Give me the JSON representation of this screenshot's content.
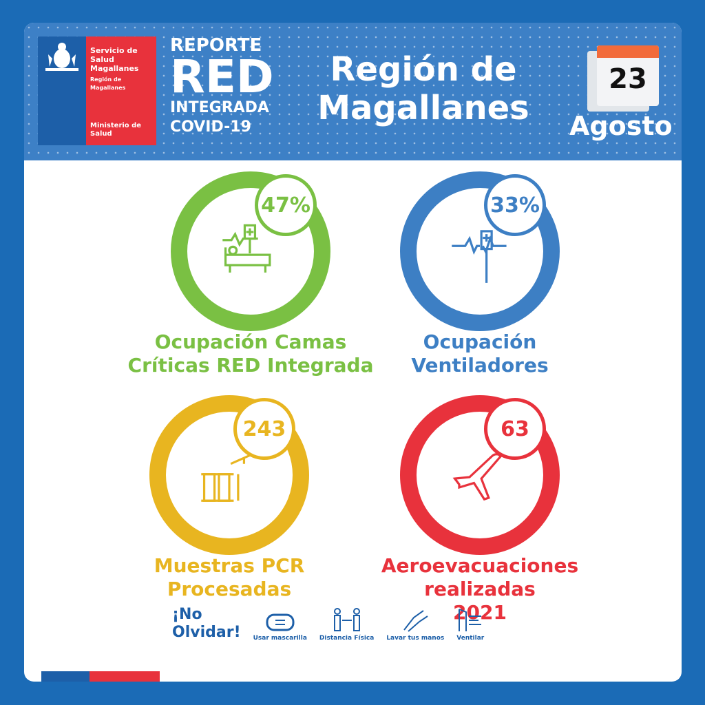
{
  "header": {
    "org_line1": "Servicio de",
    "org_line2": "Salud",
    "org_line3": "Magallanes",
    "org_sub1": "Región de",
    "org_sub2": "Magallanes",
    "ministry1": "Ministerio de",
    "ministry2": "Salud",
    "report_line1": "REPORTE",
    "report_line2": "RED",
    "report_line3": "INTEGRADA",
    "report_line4": "COVID-19",
    "title_line1": "Región de",
    "title_line2": "Magallanes",
    "day": "23",
    "month": "Agosto"
  },
  "indicators": [
    {
      "value": "47%",
      "label1": "Ocupación Camas",
      "label2": "Críticas RED Integrada",
      "color": "#7ac043",
      "icon": "hospital-bed-icon"
    },
    {
      "value": "33%",
      "label1": "Ocupación",
      "label2": "Ventiladores",
      "color": "#3d7fc4",
      "icon": "ventilator-icon"
    },
    {
      "value": "243",
      "label1": "Muestras PCR",
      "label2": "Procesadas",
      "color": "#e8b520",
      "icon": "test-tubes-icon"
    },
    {
      "value": "63",
      "label1": "Aeroevacuaciones",
      "label2": "realizadas",
      "label3": "2021",
      "color": "#e8323c",
      "icon": "airplane-icon"
    }
  ],
  "footer": {
    "reminder1": "¡No",
    "reminder2": "Olvidar!",
    "items": [
      {
        "label": "Usar mascarilla",
        "icon": "mask-icon"
      },
      {
        "label": "Distancia Física",
        "icon": "distance-icon"
      },
      {
        "label": "Lavar tus manos",
        "icon": "hand-wash-icon"
      },
      {
        "label": "Ventilar",
        "icon": "window-icon"
      }
    ]
  }
}
